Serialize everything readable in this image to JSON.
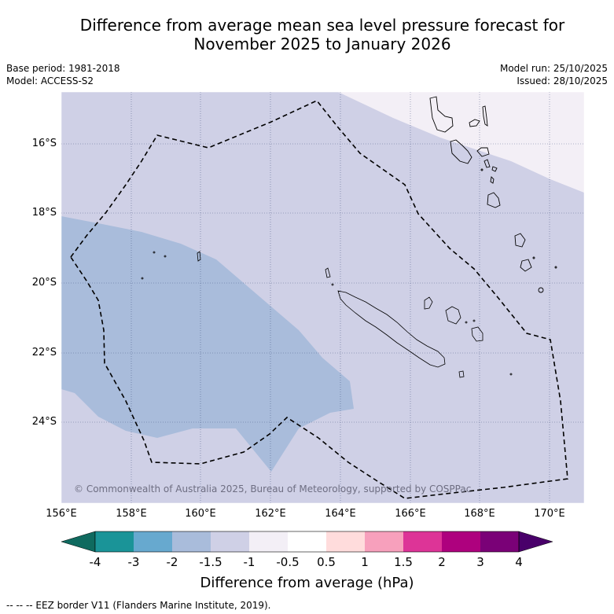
{
  "header": {
    "title_line1": "Difference from average mean sea level pressure forecast for",
    "title_line2": "November 2025 to January 2026",
    "base_period": "Base period: 1981-2018",
    "model": "Model: ACCESS-S2",
    "model_run": "Model run: 25/10/2025",
    "issued": "Issued: 28/10/2025"
  },
  "map": {
    "copyright": "© Commonwealth of Australia 2025, Bureau of Meteorology, supported by COSPPac",
    "lat_labels": [
      "16°S",
      "18°S",
      "20°S",
      "22°S",
      "24°S"
    ],
    "lon_labels": [
      "156°E",
      "158°E",
      "160°E",
      "162°E",
      "164°E",
      "166°E",
      "168°E",
      "170°E"
    ],
    "fill_colors": {
      "minus_2_to_minus_1_5": "#a9bcdb",
      "minus_1_5_to_minus_1": "#cfd0e6",
      "minus_1_to_minus_0_5": "#f3eff6"
    }
  },
  "colorbar": {
    "tick_labels": [
      "-4",
      "-3",
      "-2",
      "-1.5",
      "-1",
      "-0.5",
      "0.5",
      "1",
      "1.5",
      "2",
      "3",
      "4"
    ],
    "colors": [
      "#0f6a5f",
      "#1a9498",
      "#67a9cf",
      "#a9bcdb",
      "#cfd0e6",
      "#f3eff6",
      "#ffffff",
      "#ffdcdc",
      "#f7a0bc",
      "#dd3497",
      "#ae017e",
      "#7a0177",
      "#49006a"
    ],
    "label": "Difference from average (hPa)"
  },
  "footer": {
    "legend": "--  --  -- EEZ border V11 (Flanders Marine Institute, 2019)."
  }
}
